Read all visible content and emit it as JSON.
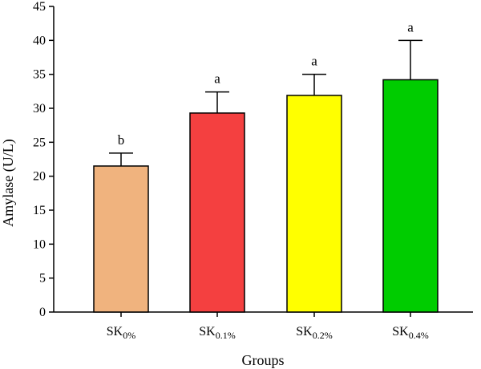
{
  "chart_data": {
    "type": "bar",
    "xlabel": "Groups",
    "ylabel": "Amylase (U/L)",
    "ylim": [
      0,
      45
    ],
    "yticks": [
      0,
      5,
      10,
      15,
      20,
      25,
      30,
      35,
      40,
      45
    ],
    "categories": [
      {
        "base": "SK",
        "sub": "0%"
      },
      {
        "base": "SK",
        "sub": "0.1%"
      },
      {
        "base": "SK",
        "sub": "0.2%"
      },
      {
        "base": "SK",
        "sub": "0.4%"
      }
    ],
    "values": [
      21.5,
      29.3,
      31.9,
      34.2
    ],
    "errors": [
      1.9,
      3.1,
      3.1,
      5.8
    ],
    "significance": [
      "b",
      "a",
      "a",
      "a"
    ],
    "colors": [
      "#F0B37E",
      "#F44040",
      "#FFFF00",
      "#00CC00"
    ],
    "grid": false,
    "legend": "none"
  }
}
